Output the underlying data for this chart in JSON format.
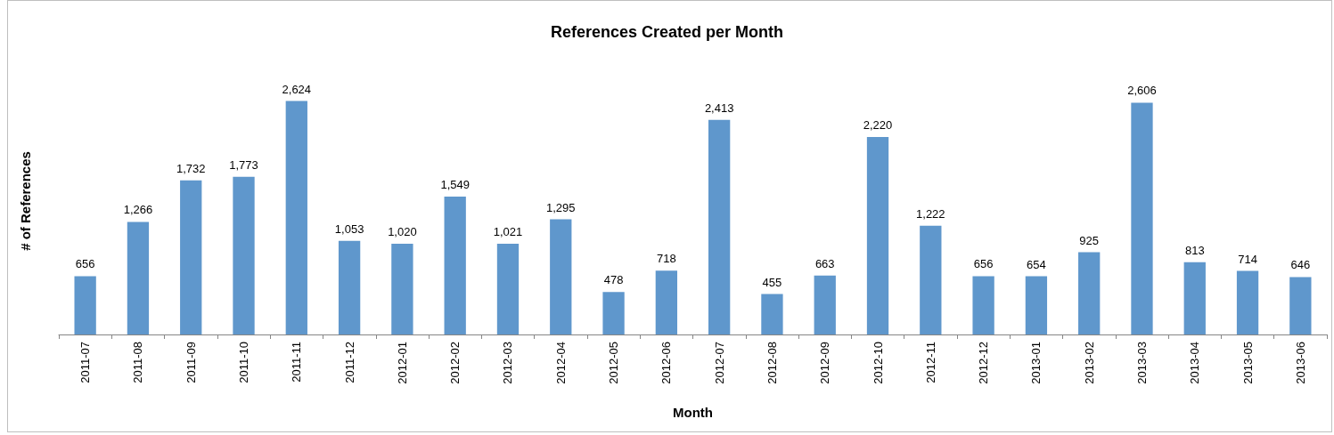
{
  "chart_data": {
    "type": "bar",
    "title": "References Created per Month",
    "xlabel": "Month",
    "ylabel": "# of References",
    "categories": [
      "2011-07",
      "2011-08",
      "2011-09",
      "2011-10",
      "2011-11",
      "2011-12",
      "2012-01",
      "2012-02",
      "2012-03",
      "2012-04",
      "2012-05",
      "2012-06",
      "2012-07",
      "2012-08",
      "2012-09",
      "2012-10",
      "2012-11",
      "2012-12",
      "2013-01",
      "2013-02",
      "2013-03",
      "2013-04",
      "2013-05",
      "2013-06"
    ],
    "values": [
      656,
      1266,
      1732,
      1773,
      2624,
      1053,
      1020,
      1549,
      1021,
      1295,
      478,
      718,
      2413,
      455,
      663,
      2220,
      1222,
      656,
      654,
      925,
      2606,
      813,
      714,
      646
    ],
    "value_labels": [
      "656",
      "1,266",
      "1,732",
      "1,773",
      "2,624",
      "1,053",
      "1,020",
      "1,549",
      "1,021",
      "1,295",
      "478",
      "718",
      "2,413",
      "455",
      "663",
      "2,220",
      "1,222",
      "656",
      "654",
      "925",
      "2,606",
      "813",
      "714",
      "646"
    ],
    "color": "#5f97cc",
    "grid": false,
    "tick_labels": "x"
  }
}
